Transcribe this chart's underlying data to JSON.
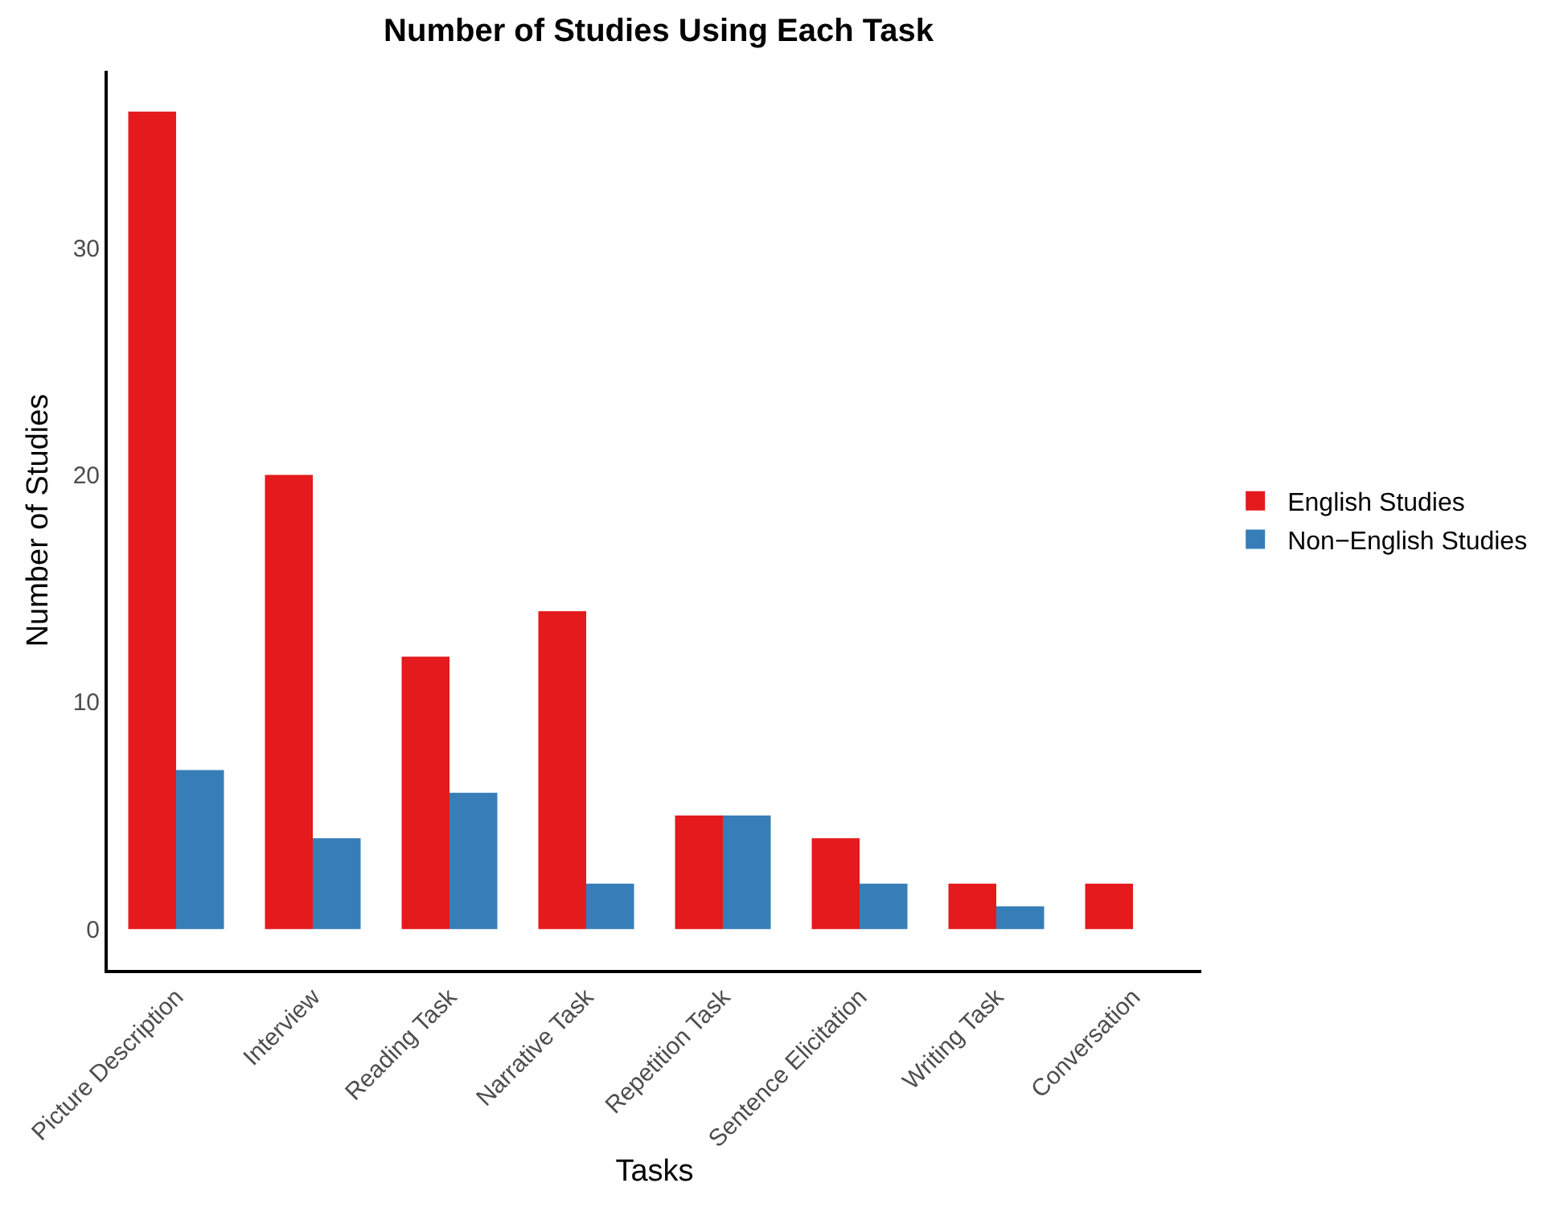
{
  "chart_data": {
    "type": "bar",
    "title": "Number of Studies Using Each Task",
    "xlabel": "Tasks",
    "ylabel": "Number of Studies",
    "categories": [
      "Picture Description",
      "Interview",
      "Reading Task",
      "Narrative Task",
      "Repetition Task",
      "Sentence Elicitation",
      "Writing Task",
      "Conversation"
    ],
    "series": [
      {
        "name": "English Studies",
        "color": "#e41a1c",
        "values": [
          36,
          20,
          12,
          14,
          5,
          4,
          2,
          2
        ]
      },
      {
        "name": "Non−English Studies",
        "color": "#377eb8",
        "values": [
          7,
          4,
          6,
          2,
          5,
          2,
          1,
          0
        ]
      }
    ],
    "ylim": [
      -1.8,
      37.8
    ],
    "yticks": [
      0,
      10,
      20,
      30
    ],
    "grid": false,
    "legend": "right"
  }
}
